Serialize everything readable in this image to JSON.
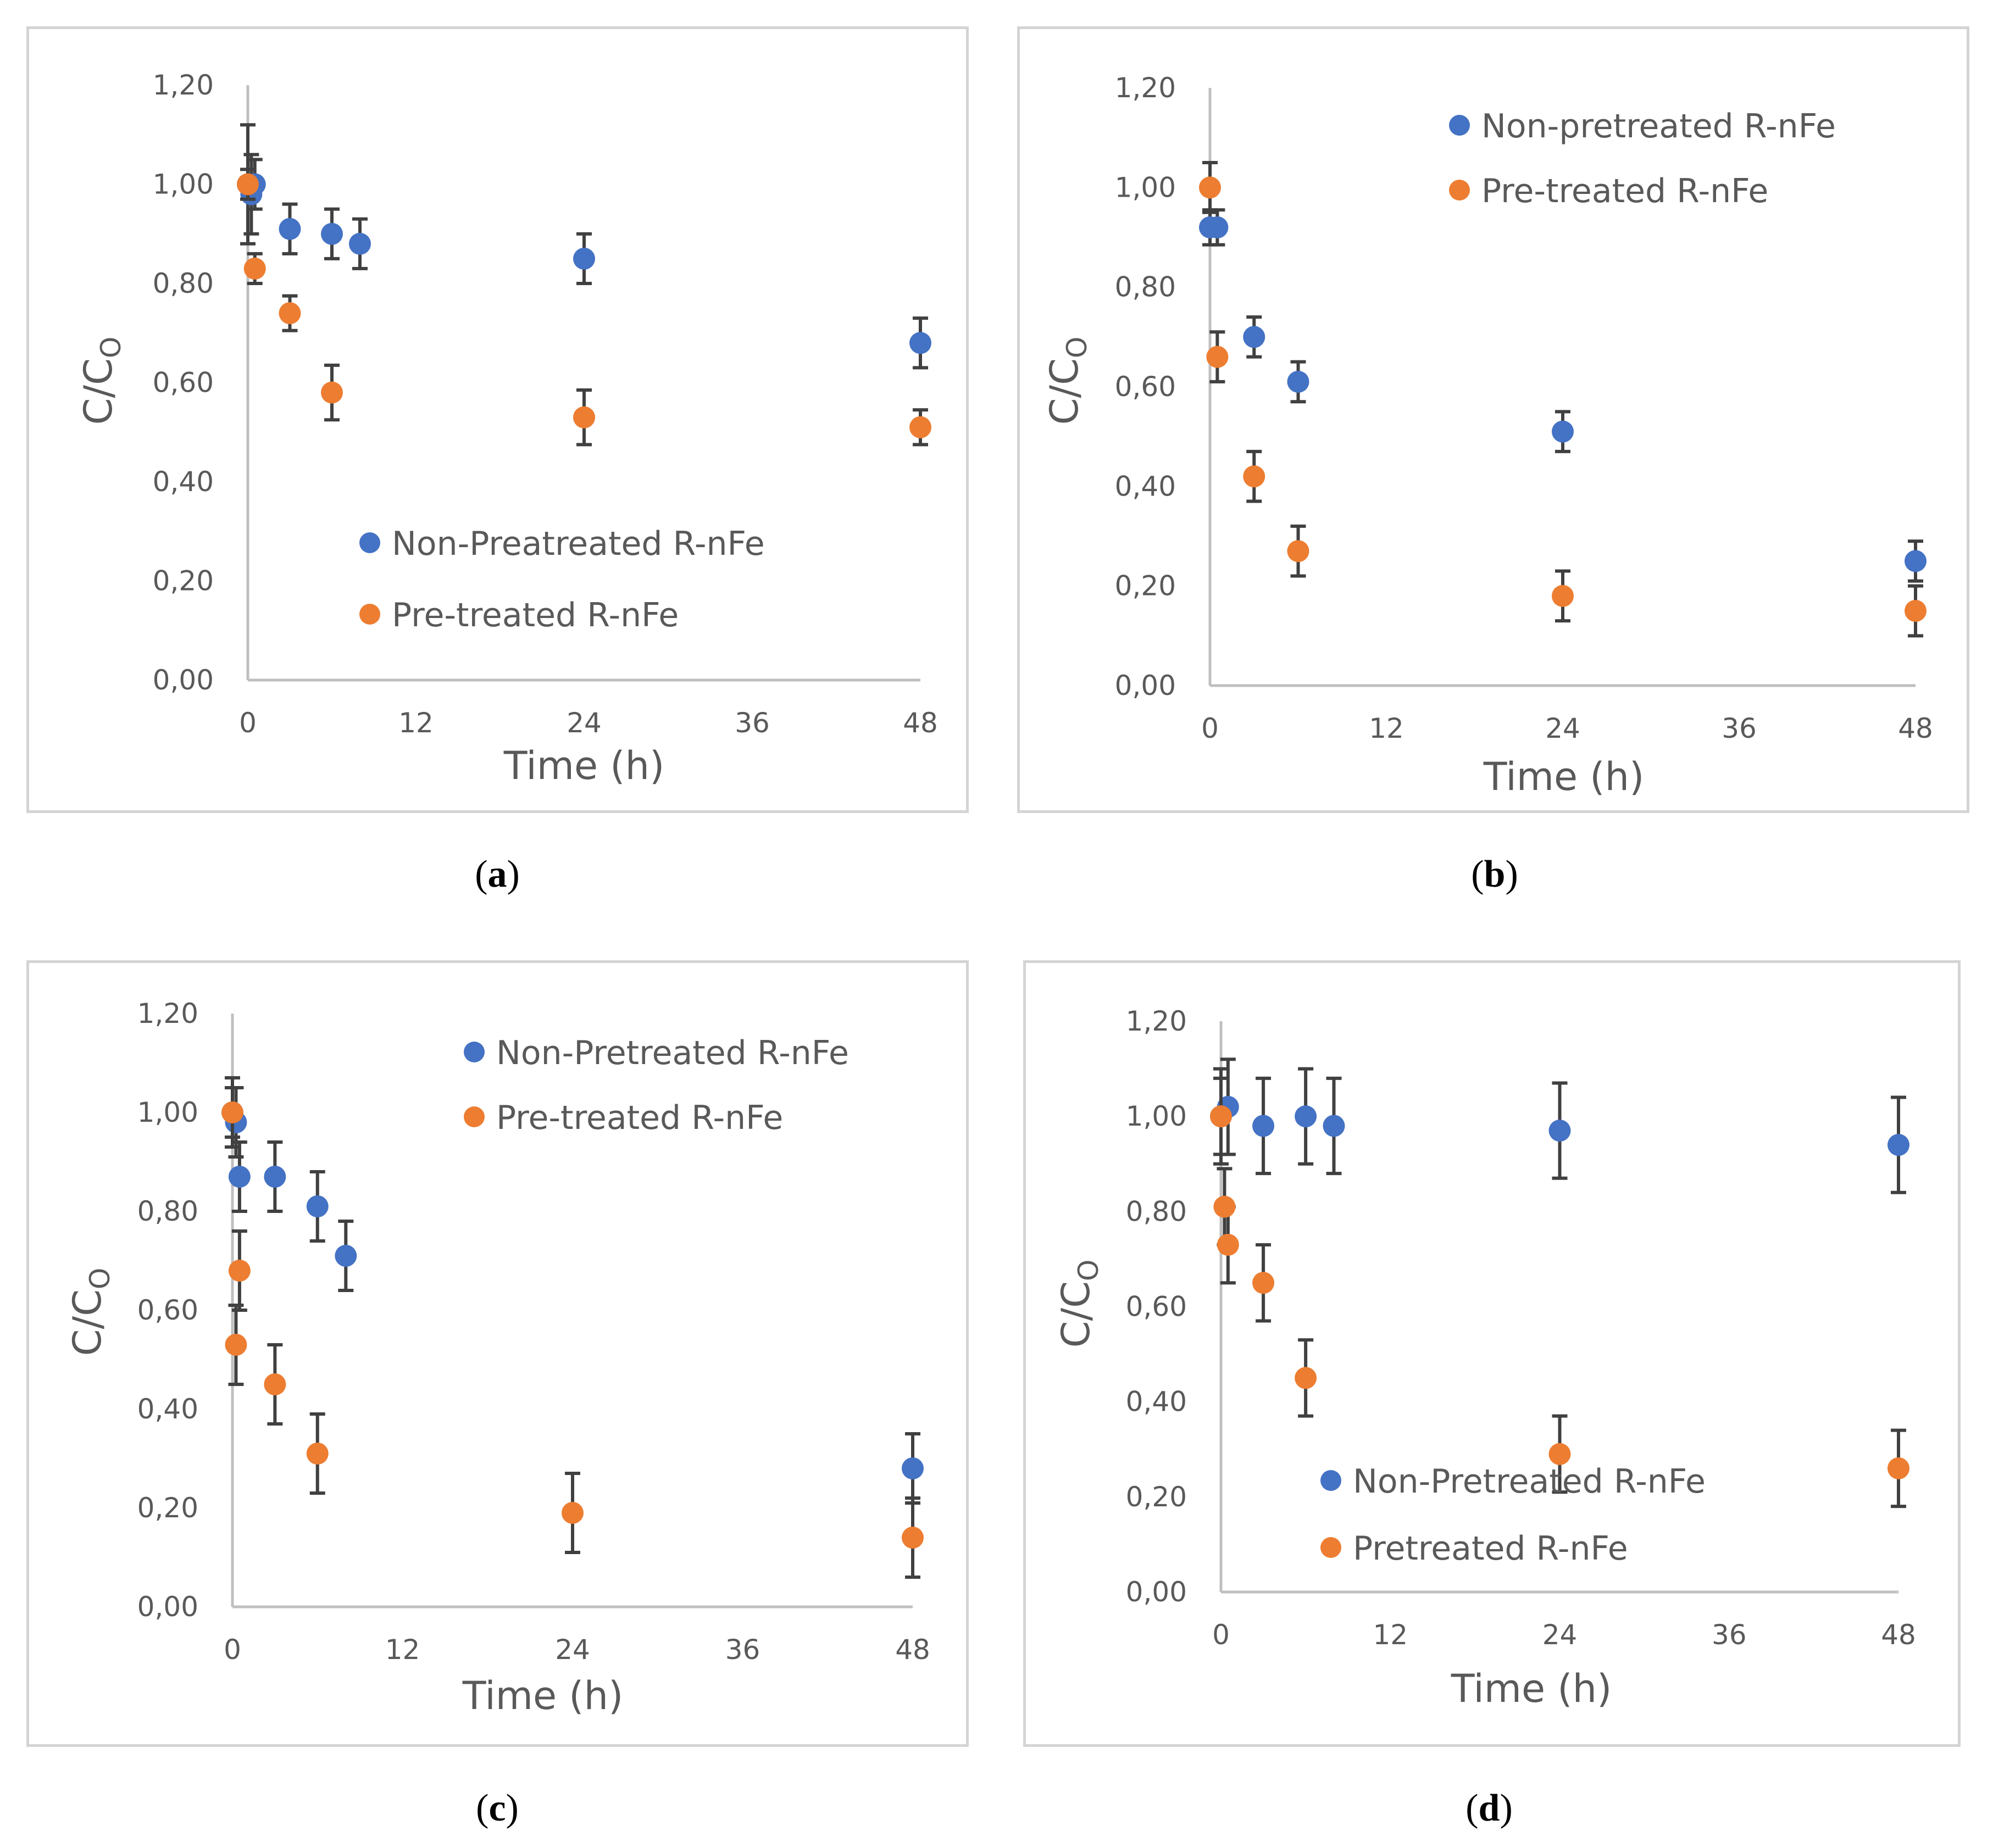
{
  "colors": {
    "series1": "#4472C4",
    "series2": "#ED7D31",
    "axis": "#BFBFBF",
    "errorbar": "#404040",
    "text": "#595959",
    "frame": "#D4D4D4"
  },
  "chart_data": [
    {
      "id": "a",
      "caption": "a",
      "type": "scatter",
      "xlabel": "Time (h)",
      "ylabel": "C/C",
      "ylabel_sub": "O",
      "xlim": [
        0,
        48
      ],
      "ylim": [
        0,
        1.2
      ],
      "xticks": [
        0,
        12,
        24,
        36,
        48
      ],
      "xtick_labels": [
        "0",
        "12",
        "24",
        "36",
        "48"
      ],
      "yticks": [
        0,
        0.2,
        0.4,
        0.6,
        0.8,
        1.0,
        1.2
      ],
      "ytick_labels": [
        "0,00",
        "0,20",
        "0,40",
        "0,60",
        "0,80",
        "1,00",
        "1,20"
      ],
      "legend_position": "middle-center",
      "series": [
        {
          "name": "Non-Preatreated R-nFe",
          "color_key": "series1",
          "x": [
            0,
            0.25,
            0.5,
            3,
            6,
            8,
            24,
            48
          ],
          "y": [
            1.0,
            0.98,
            1.0,
            0.91,
            0.9,
            0.88,
            0.85,
            0.68
          ],
          "err": [
            0.12,
            0.08,
            0.05,
            0.05,
            0.05,
            0.05,
            0.05,
            0.05
          ]
        },
        {
          "name": "Pre-treated R-nFe",
          "color_key": "series2",
          "x": [
            0,
            0.5,
            3,
            6,
            24,
            48
          ],
          "y": [
            1.0,
            0.83,
            0.74,
            0.58,
            0.53,
            0.51
          ],
          "err": [
            0.03,
            0.03,
            0.035,
            0.055,
            0.055,
            0.035
          ]
        }
      ]
    },
    {
      "id": "b",
      "caption": "b",
      "type": "scatter",
      "xlabel": "Time (h)",
      "ylabel": "C/C",
      "ylabel_sub": "O",
      "xlim": [
        0,
        48
      ],
      "ylim": [
        0,
        1.2
      ],
      "xticks": [
        0,
        12,
        24,
        36,
        48
      ],
      "xtick_labels": [
        "0",
        "12",
        "24",
        "36",
        "48"
      ],
      "yticks": [
        0,
        0.2,
        0.4,
        0.6,
        0.8,
        1.0,
        1.2
      ],
      "ytick_labels": [
        "0,00",
        "0,20",
        "0,40",
        "0,60",
        "0,80",
        "1,00",
        "1,20"
      ],
      "legend_position": "top-right",
      "series": [
        {
          "name": "Non-pretreated R-nFe",
          "color_key": "series1",
          "x": [
            0,
            0.5,
            3,
            6,
            24,
            48
          ],
          "y": [
            0.92,
            0.92,
            0.7,
            0.61,
            0.51,
            0.25
          ],
          "err": [
            0.035,
            0.035,
            0.04,
            0.04,
            0.04,
            0.04
          ]
        },
        {
          "name": "Pre-treated R-nFe",
          "color_key": "series2",
          "x": [
            0,
            0.5,
            3,
            6,
            24,
            48
          ],
          "y": [
            1.0,
            0.66,
            0.42,
            0.27,
            0.18,
            0.15
          ],
          "err": [
            0.05,
            0.05,
            0.05,
            0.05,
            0.05,
            0.05
          ]
        }
      ]
    },
    {
      "id": "c",
      "caption": "c",
      "type": "scatter",
      "xlabel": "Time (h)",
      "ylabel": "C/C",
      "ylabel_sub": "O",
      "xlim": [
        0,
        48
      ],
      "ylim": [
        0,
        1.2
      ],
      "xticks": [
        0,
        12,
        24,
        36,
        48
      ],
      "xtick_labels": [
        "0",
        "12",
        "24",
        "36",
        "48"
      ],
      "yticks": [
        0,
        0.2,
        0.4,
        0.6,
        0.8,
        1.0,
        1.2
      ],
      "ytick_labels": [
        "0,00",
        "0,20",
        "0,40",
        "0,60",
        "0,80",
        "1,00",
        "1,20"
      ],
      "legend_position": "top-right",
      "series": [
        {
          "name": "Non-Pretreated R-nFe",
          "color_key": "series1",
          "x": [
            0,
            0.25,
            0.5,
            3,
            6,
            8,
            48
          ],
          "y": [
            1.0,
            0.98,
            0.87,
            0.87,
            0.81,
            0.71,
            0.28
          ],
          "err": [
            0.07,
            0.07,
            0.07,
            0.07,
            0.07,
            0.07,
            0.07
          ]
        },
        {
          "name": "Pre-treated R-nFe",
          "color_key": "series2",
          "x": [
            0,
            0.25,
            0.5,
            3,
            6,
            24,
            48
          ],
          "y": [
            1.0,
            0.53,
            0.68,
            0.45,
            0.31,
            0.19,
            0.14
          ],
          "err": [
            0.05,
            0.08,
            0.08,
            0.08,
            0.08,
            0.08,
            0.08
          ]
        }
      ]
    },
    {
      "id": "d",
      "caption": "d",
      "type": "scatter",
      "xlabel": "Time (h)",
      "ylabel": "C/C",
      "ylabel_sub": "O",
      "xlim": [
        0,
        48
      ],
      "ylim": [
        0,
        1.2
      ],
      "xticks": [
        0,
        12,
        24,
        36,
        48
      ],
      "xtick_labels": [
        "0",
        "12",
        "24",
        "36",
        "48"
      ],
      "yticks": [
        0,
        0.2,
        0.4,
        0.6,
        0.8,
        1.0,
        1.2
      ],
      "ytick_labels": [
        "0,00",
        "0,20",
        "0,40",
        "0,60",
        "0,80",
        "1,00",
        "1,20"
      ],
      "legend_position": "bottom-center",
      "series": [
        {
          "name": "Non-Pretreated R-nFe",
          "color_key": "series1",
          "x": [
            0,
            0.5,
            3,
            6,
            8,
            24,
            48
          ],
          "y": [
            1.0,
            1.02,
            0.98,
            1.0,
            0.98,
            0.97,
            0.94
          ],
          "err": [
            0.1,
            0.1,
            0.1,
            0.1,
            0.1,
            0.1,
            0.1
          ]
        },
        {
          "name": "Pretreated R-nFe",
          "color_key": "series2",
          "x": [
            0,
            0.25,
            0.5,
            3,
            6,
            24,
            48
          ],
          "y": [
            1.0,
            0.81,
            0.73,
            0.65,
            0.45,
            0.29,
            0.26
          ],
          "err": [
            0.08,
            0.08,
            0.08,
            0.08,
            0.08,
            0.08,
            0.08
          ]
        }
      ]
    }
  ]
}
